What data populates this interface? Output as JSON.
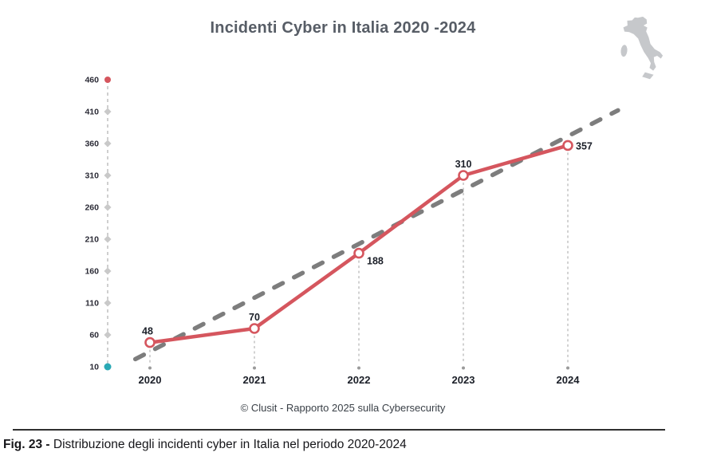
{
  "title": "Incidenti Cyber in Italia 2020 -2024",
  "attribution": "© Clusit - Rapporto 2025 sulla Cybersecurity",
  "caption": {
    "label": "Fig. 23 -",
    "text": " Distribuzione degli incidenti cyber in Italia nel periodo 2020-2024"
  },
  "icons": {
    "italy_map": "italy-map-silhouette"
  },
  "colors": {
    "accent_red": "#d5565e",
    "trend_gray": "#7d7d7d",
    "axis_gray": "#b5b5b5",
    "tick_dot_gray": "#c9c9c9",
    "teal_dot": "#2aa9b5",
    "drop_line_gray": "#a6a6a6",
    "drop_dot_gray": "#9a9a9a",
    "tick_text": "#2b2b36",
    "label_dark": "#1b1f28",
    "title_gray": "#575d66",
    "map_gray": "#c6c8cb"
  },
  "chart_data": {
    "type": "line",
    "title": "Incidenti Cyber in Italia 2020 -2024",
    "categories": [
      "2020",
      "2021",
      "2022",
      "2023",
      "2024"
    ],
    "series": [
      {
        "name": "Incidenti cyber in Italia",
        "values": [
          48,
          70,
          188,
          310,
          357
        ]
      }
    ],
    "y_ticks": [
      460,
      410,
      360,
      310,
      260,
      210,
      160,
      110,
      60,
      10
    ],
    "ylim": [
      10,
      460
    ],
    "xlabel": "",
    "ylabel": "",
    "grid": false,
    "legend": false,
    "trendline": {
      "style": "dashed",
      "start_offset": -0.14,
      "start_value": 22,
      "end_offset": 4.48,
      "end_value": 412
    },
    "label_positions": [
      "above-left",
      "above",
      "right-below",
      "above",
      "right"
    ]
  }
}
